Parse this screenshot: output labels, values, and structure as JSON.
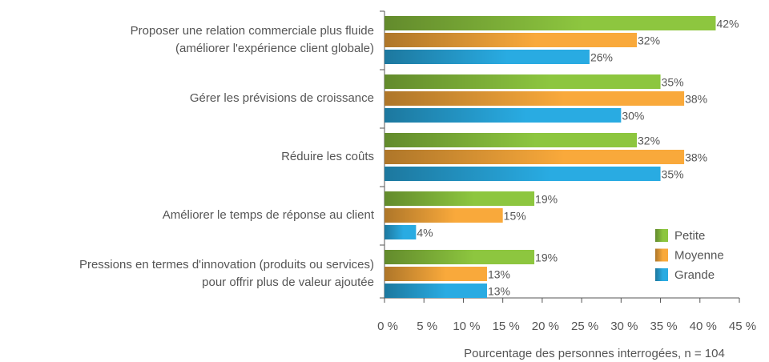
{
  "chart_data": {
    "type": "hbar",
    "categories": [
      "Proposer une relation commerciale plus fluide\n(améliorer l'expérience client globale)",
      "Gérer les prévisions de croissance",
      "Réduire les coûts",
      "Améliorer le temps de réponse au client",
      "Pressions en termes d'innovation (produits ou services)\npour offrir plus de valeur ajoutée"
    ],
    "series": [
      {
        "name": "Petite",
        "color": "#8dc63f",
        "values": [
          42,
          35,
          32,
          19,
          19
        ],
        "value_labels": [
          "42%",
          "35%",
          "32%",
          "19%",
          "19%"
        ]
      },
      {
        "name": "Moyenne",
        "color": "#f9a93b",
        "values": [
          32,
          38,
          38,
          15,
          13
        ],
        "value_labels": [
          "32%",
          "38%",
          "38%",
          "15%",
          "13%"
        ]
      },
      {
        "name": "Grande",
        "color": "#29abe2",
        "values": [
          26,
          30,
          35,
          4,
          13
        ],
        "value_labels": [
          "26%",
          "30%",
          "35%",
          "4%",
          "13%"
        ]
      }
    ],
    "xlim": [
      0,
      45
    ],
    "xticks": [
      {
        "value": 0,
        "label": "0 %"
      },
      {
        "value": 5,
        "label": "5 %"
      },
      {
        "value": 10,
        "label": "10 %"
      },
      {
        "value": 15,
        "label": "15 %"
      },
      {
        "value": 20,
        "label": "20 %"
      },
      {
        "value": 25,
        "label": "25 %"
      },
      {
        "value": 30,
        "label": "30 %"
      },
      {
        "value": 35,
        "label": "35 %"
      },
      {
        "value": 40,
        "label": "40 %"
      },
      {
        "value": 45,
        "label": "45 %"
      }
    ],
    "x_label": "Pourcentage des personnes interrogées, n = 104",
    "legend": "lower right",
    "grid": false
  }
}
